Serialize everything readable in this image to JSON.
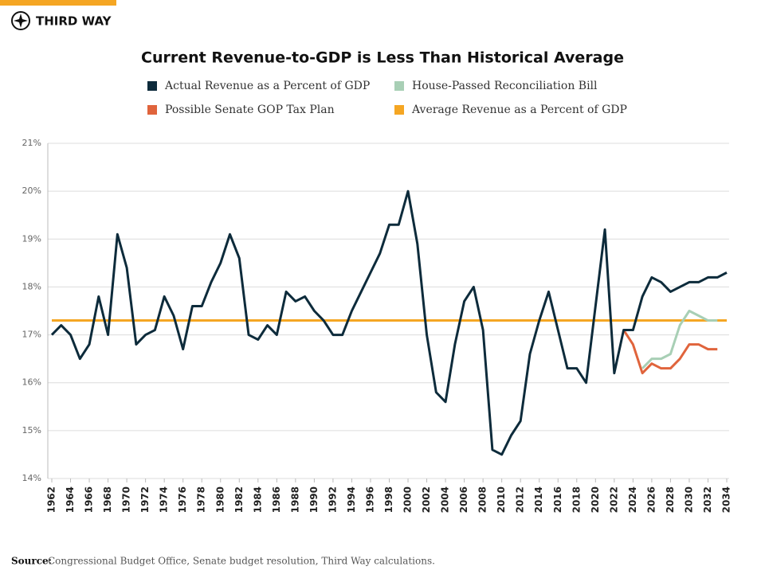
{
  "brand": "THIRD WAY",
  "chart_data": {
    "type": "line",
    "title": "Current Revenue-to-GDP is Less Than Historical Average",
    "categories": [
      "1962",
      null,
      "1964",
      null,
      "1966",
      null,
      "1968",
      null,
      "1970",
      null,
      "1972",
      null,
      "1974",
      null,
      "1976",
      null,
      "1978",
      null,
      "1980",
      null,
      "1982",
      null,
      "1984",
      null,
      "1986",
      null,
      "1988",
      null,
      "1990",
      null,
      "1992",
      null,
      "1994",
      null,
      "1996",
      null,
      "1998",
      null,
      "2000",
      null,
      "2002",
      null,
      "2004",
      null,
      "2006",
      null,
      "2008",
      null,
      "2010",
      null,
      "2012",
      null,
      "2014",
      null,
      "2016",
      null,
      "2018",
      null,
      "2020",
      null,
      "2022",
      null,
      "2024",
      null,
      "2026",
      null,
      "2028",
      null,
      "2030",
      null,
      "2032",
      null,
      "2034"
    ],
    "series": [
      {
        "name": "Actual Revenue as a Percent of GDP",
        "color": "#0d2b3b",
        "values": [
          17.0,
          17.2,
          17.0,
          16.5,
          16.8,
          17.8,
          17.0,
          19.1,
          18.4,
          16.8,
          17.0,
          17.1,
          17.8,
          17.4,
          16.7,
          17.6,
          17.6,
          18.1,
          18.5,
          19.1,
          18.6,
          17.0,
          16.9,
          17.2,
          17.0,
          17.9,
          17.7,
          17.8,
          17.5,
          17.3,
          17.0,
          17.0,
          17.5,
          17.9,
          18.3,
          18.7,
          19.3,
          19.3,
          20.0,
          18.9,
          17.0,
          15.8,
          15.6,
          16.8,
          17.7,
          18.0,
          17.1,
          14.6,
          14.5,
          14.9,
          15.2,
          16.6,
          17.3,
          17.9,
          17.1,
          16.3,
          16.3,
          16.0,
          17.6,
          19.2,
          16.2,
          17.1,
          17.1,
          17.8,
          18.2,
          18.1,
          17.9,
          18.0,
          18.1,
          18.1,
          18.2,
          18.2,
          18.3
        ]
      },
      {
        "name": "House-Passed Reconciliation Bill",
        "color": "#a8cfb5",
        "values": [
          null,
          null,
          null,
          null,
          null,
          null,
          null,
          null,
          null,
          null,
          null,
          null,
          null,
          null,
          null,
          null,
          null,
          null,
          null,
          null,
          null,
          null,
          null,
          null,
          null,
          null,
          null,
          null,
          null,
          null,
          null,
          null,
          null,
          null,
          null,
          null,
          null,
          null,
          null,
          null,
          null,
          null,
          null,
          null,
          null,
          null,
          null,
          null,
          null,
          null,
          null,
          null,
          null,
          null,
          null,
          null,
          null,
          null,
          null,
          null,
          null,
          null,
          null,
          16.3,
          16.5,
          16.5,
          16.6,
          17.2,
          17.5,
          17.4,
          17.3,
          17.3,
          null
        ]
      },
      {
        "name": "Possible Senate GOP Tax Plan",
        "color": "#e0643c",
        "values": [
          null,
          null,
          null,
          null,
          null,
          null,
          null,
          null,
          null,
          null,
          null,
          null,
          null,
          null,
          null,
          null,
          null,
          null,
          null,
          null,
          null,
          null,
          null,
          null,
          null,
          null,
          null,
          null,
          null,
          null,
          null,
          null,
          null,
          null,
          null,
          null,
          null,
          null,
          null,
          null,
          null,
          null,
          null,
          null,
          null,
          null,
          null,
          null,
          null,
          null,
          null,
          null,
          null,
          null,
          null,
          null,
          null,
          null,
          null,
          null,
          null,
          17.1,
          16.8,
          16.2,
          16.4,
          16.3,
          16.3,
          16.5,
          16.8,
          16.8,
          16.7,
          16.7,
          null
        ]
      },
      {
        "name": "Average Revenue as a Percent of GDP",
        "color": "#f5a623",
        "values": [
          17.3,
          17.3,
          17.3,
          17.3,
          17.3,
          17.3,
          17.3,
          17.3,
          17.3,
          17.3,
          17.3,
          17.3,
          17.3,
          17.3,
          17.3,
          17.3,
          17.3,
          17.3,
          17.3,
          17.3,
          17.3,
          17.3,
          17.3,
          17.3,
          17.3,
          17.3,
          17.3,
          17.3,
          17.3,
          17.3,
          17.3,
          17.3,
          17.3,
          17.3,
          17.3,
          17.3,
          17.3,
          17.3,
          17.3,
          17.3,
          17.3,
          17.3,
          17.3,
          17.3,
          17.3,
          17.3,
          17.3,
          17.3,
          17.3,
          17.3,
          17.3,
          17.3,
          17.3,
          17.3,
          17.3,
          17.3,
          17.3,
          17.3,
          17.3,
          17.3,
          17.3,
          17.3,
          17.3,
          17.3,
          17.3,
          17.3,
          17.3,
          17.3,
          17.3,
          17.3,
          17.3,
          17.3,
          17.3
        ]
      }
    ],
    "ylim": [
      14,
      21
    ],
    "yticks": [
      {
        "value": 14,
        "label": "14%"
      },
      {
        "value": 15,
        "label": "15%"
      },
      {
        "value": 16,
        "label": "16%"
      },
      {
        "value": 17,
        "label": "17%"
      },
      {
        "value": 18,
        "label": "18%"
      },
      {
        "value": 19,
        "label": "19%"
      },
      {
        "value": 20,
        "label": "20%"
      },
      {
        "value": 21,
        "label": "21%"
      }
    ],
    "grid": true
  },
  "source": {
    "label": "Source:",
    "text": "Congressional Budget Office, Senate budget resolution, Third Way calculations."
  }
}
